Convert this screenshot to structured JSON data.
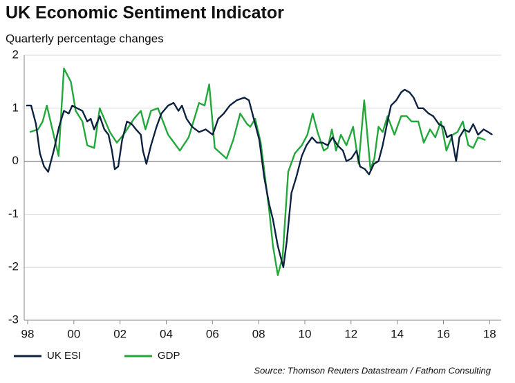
{
  "chart_data": {
    "type": "line",
    "title": "UK Economic Sentiment Indicator",
    "subtitle": "Quarterly percentage changes",
    "source": "Source: Thomson Reuters Datastream / Fathom Consulting",
    "xlim": [
      1997.85,
      2018.5
    ],
    "xticks": [
      {
        "value": 1998,
        "label": "98"
      },
      {
        "value": 2000,
        "label": "00"
      },
      {
        "value": 2002,
        "label": "02"
      },
      {
        "value": 2004,
        "label": "04"
      },
      {
        "value": 2006,
        "label": "06"
      },
      {
        "value": 2008,
        "label": "08"
      },
      {
        "value": 2010,
        "label": "10"
      },
      {
        "value": 2012,
        "label": "12"
      },
      {
        "value": 2014,
        "label": "14"
      },
      {
        "value": 2016,
        "label": "16"
      },
      {
        "value": 2018,
        "label": "18"
      }
    ],
    "ylim": [
      -3,
      2
    ],
    "yticks": [
      -3,
      -2,
      -1,
      0,
      1,
      2
    ],
    "grid": true,
    "legend": "bottom-left",
    "series": [
      {
        "name": "UK ESI",
        "color": "#0d2240",
        "x": [
          1997.94,
          1998.15,
          1998.36,
          1998.53,
          1998.71,
          1998.89,
          1999.13,
          1999.36,
          1999.57,
          1999.78,
          1999.93,
          2000.14,
          2000.37,
          2000.58,
          2000.73,
          2000.88,
          2001.12,
          2001.32,
          2001.5,
          2001.65,
          2001.77,
          2001.92,
          2002.09,
          2002.3,
          2002.51,
          2002.69,
          2002.9,
          2002.99,
          2003.14,
          2003.34,
          2003.58,
          2003.79,
          2004.08,
          2004.32,
          2004.53,
          2004.68,
          2004.88,
          2005.12,
          2005.42,
          2005.71,
          2006.01,
          2006.25,
          2006.49,
          2006.75,
          2007.05,
          2007.38,
          2007.58,
          2007.79,
          2008.03,
          2008.24,
          2008.45,
          2008.62,
          2008.83,
          2009.07,
          2009.22,
          2009.42,
          2009.63,
          2009.87,
          2010.07,
          2010.31,
          2010.52,
          2010.76,
          2010.99,
          2011.2,
          2011.41,
          2011.65,
          2011.8,
          2012.01,
          2012.24,
          2012.39,
          2012.6,
          2012.78,
          2012.99,
          2013.19,
          2013.37,
          2013.58,
          2013.73,
          2013.96,
          2014.17,
          2014.32,
          2014.53,
          2014.71,
          2014.91,
          2015.12,
          2015.36,
          2015.56,
          2015.8,
          2016.01,
          2016.16,
          2016.34,
          2016.55,
          2016.69,
          2016.9,
          2017.11,
          2017.29,
          2017.5,
          2017.74,
          2017.94,
          2018.12
        ],
        "values": [
          1.05,
          1.05,
          0.7,
          0.15,
          -0.1,
          -0.2,
          0.2,
          0.65,
          0.95,
          0.9,
          1.05,
          1.0,
          0.95,
          0.75,
          0.8,
          0.6,
          0.85,
          0.6,
          0.5,
          0.2,
          -0.15,
          -0.1,
          0.4,
          0.75,
          0.7,
          0.6,
          0.5,
          0.2,
          -0.05,
          0.3,
          0.65,
          0.9,
          1.05,
          1.1,
          0.95,
          1.05,
          0.8,
          0.65,
          0.55,
          0.6,
          0.5,
          0.8,
          0.9,
          1.05,
          1.15,
          1.2,
          1.15,
          0.8,
          0.4,
          -0.3,
          -0.8,
          -1.1,
          -1.6,
          -2.0,
          -1.5,
          -0.6,
          -0.3,
          0.1,
          0.3,
          0.45,
          0.35,
          0.35,
          0.3,
          0.45,
          0.3,
          0.2,
          0.0,
          0.05,
          0.2,
          -0.1,
          -0.15,
          -0.25,
          -0.05,
          0.0,
          0.3,
          0.75,
          1.05,
          1.15,
          1.3,
          1.35,
          1.3,
          1.2,
          1.0,
          1.0,
          0.9,
          0.85,
          0.7,
          0.65,
          0.45,
          0.5,
          0.0,
          0.45,
          0.6,
          0.55,
          0.7,
          0.5,
          0.6,
          0.55,
          0.5
        ]
      },
      {
        "name": "GDP",
        "color": "#22a83a",
        "x": [
          1998.09,
          1998.45,
          1998.65,
          1998.83,
          1999.07,
          1999.34,
          1999.57,
          1999.87,
          2000.08,
          2000.37,
          2000.58,
          2000.88,
          2001.12,
          2001.56,
          2001.86,
          2002.15,
          2002.6,
          2002.9,
          2003.1,
          2003.34,
          2003.64,
          2004.08,
          2004.59,
          2004.97,
          2005.42,
          2005.66,
          2005.86,
          2006.1,
          2006.61,
          2006.9,
          2007.2,
          2007.5,
          2007.64,
          2007.85,
          2008.09,
          2008.45,
          2008.62,
          2008.83,
          2009.04,
          2009.28,
          2009.57,
          2009.87,
          2010.11,
          2010.34,
          2010.55,
          2010.82,
          2010.99,
          2011.17,
          2011.35,
          2011.56,
          2011.8,
          2012.09,
          2012.33,
          2012.57,
          2012.84,
          2013.01,
          2013.19,
          2013.37,
          2013.58,
          2013.88,
          2014.17,
          2014.41,
          2014.62,
          2014.91,
          2015.15,
          2015.42,
          2015.65,
          2015.89,
          2016.13,
          2016.4,
          2016.61,
          2016.84,
          2017.08,
          2017.29,
          2017.5,
          2017.82
        ],
        "values": [
          0.55,
          0.6,
          0.75,
          1.05,
          0.6,
          0.1,
          1.75,
          1.5,
          0.95,
          0.75,
          0.3,
          0.25,
          1.0,
          0.55,
          0.35,
          0.5,
          0.8,
          0.95,
          0.6,
          0.95,
          1.0,
          0.5,
          0.2,
          0.45,
          1.1,
          1.05,
          1.45,
          0.25,
          0.05,
          0.4,
          0.9,
          0.7,
          0.65,
          0.8,
          0.35,
          -0.9,
          -1.6,
          -2.15,
          -1.8,
          -0.2,
          0.15,
          0.3,
          0.5,
          0.9,
          0.55,
          0.2,
          0.25,
          0.6,
          0.2,
          0.5,
          0.3,
          0.65,
          -0.05,
          1.15,
          -0.15,
          0.05,
          0.65,
          0.55,
          0.85,
          0.5,
          0.85,
          0.85,
          0.75,
          0.75,
          0.35,
          0.6,
          0.45,
          0.75,
          0.2,
          0.5,
          0.55,
          0.75,
          0.3,
          0.25,
          0.45,
          0.4
        ]
      }
    ]
  }
}
